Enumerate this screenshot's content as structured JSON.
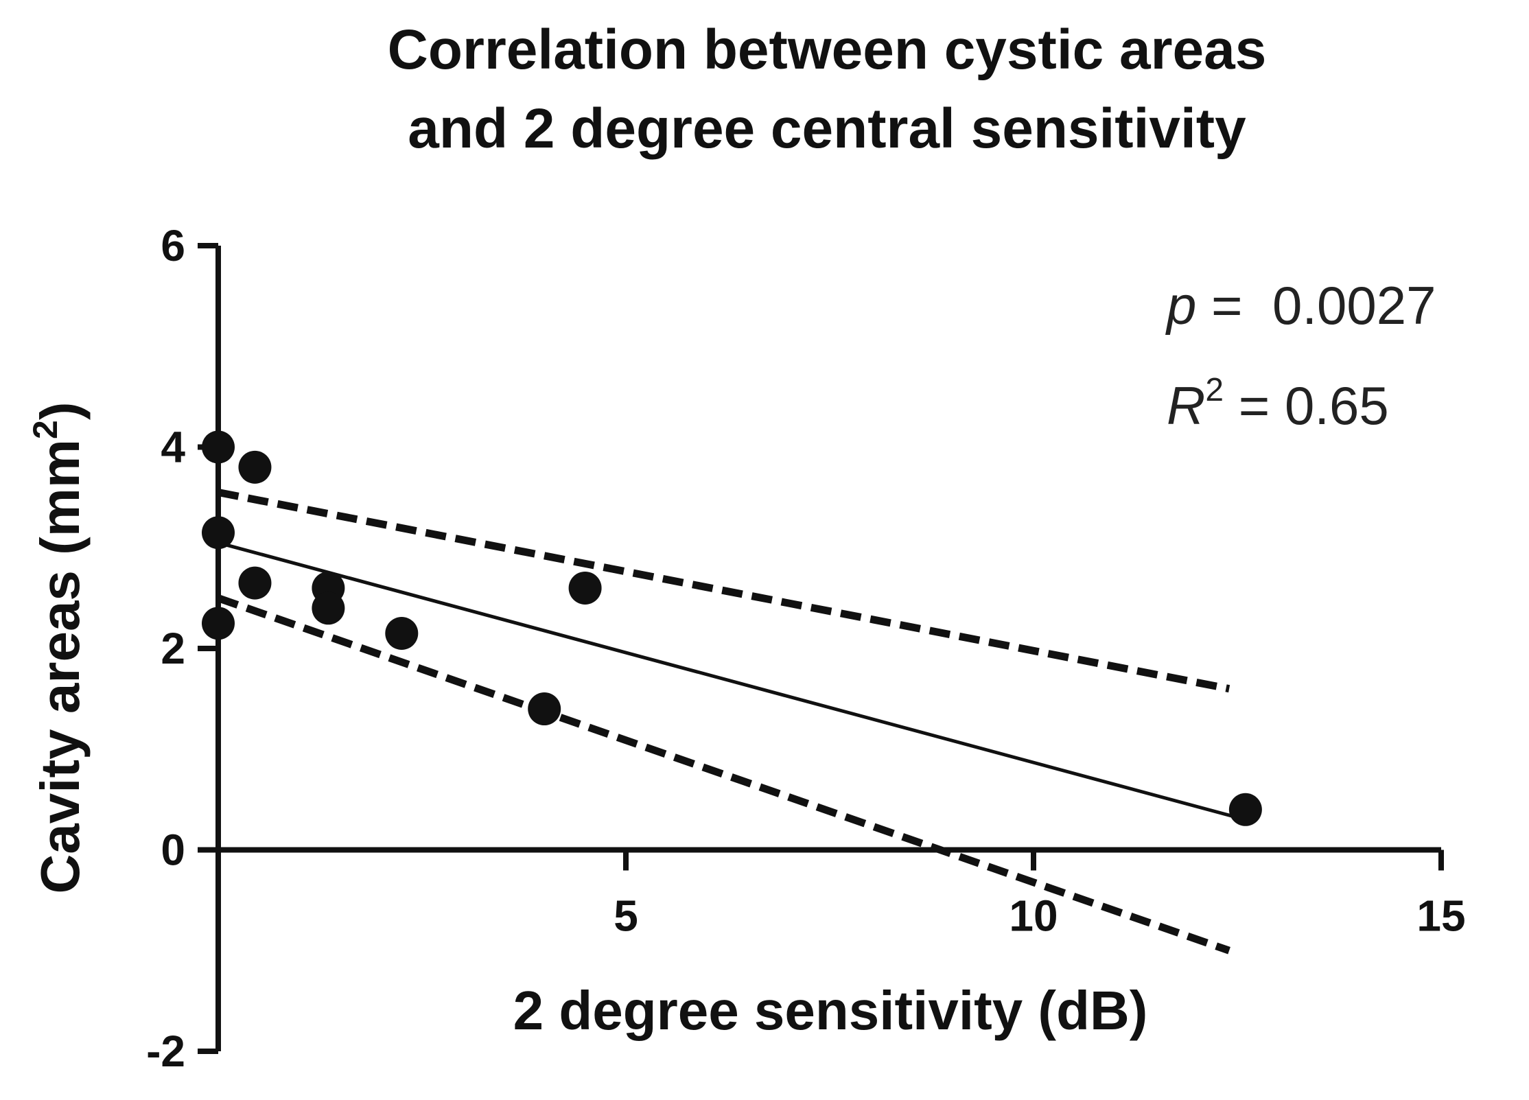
{
  "chart_data": {
    "type": "scatter",
    "title_lines": [
      "Correlation between cystic areas",
      "and 2 degree central sensitivity"
    ],
    "xlabel": "2 degree sensitivity (dB)",
    "ylabel_main": "Cavity areas (mm",
    "ylabel_sup": "2",
    "ylabel_close": ")",
    "xlim": [
      0,
      15
    ],
    "ylim": [
      -2,
      6
    ],
    "x_ticks": [
      5,
      10,
      15
    ],
    "y_ticks": [
      -2,
      0,
      2,
      4,
      6
    ],
    "grid": false,
    "points": [
      {
        "x": 0,
        "y": 4.0
      },
      {
        "x": 0.45,
        "y": 3.8
      },
      {
        "x": 0,
        "y": 3.15
      },
      {
        "x": 0,
        "y": 2.25
      },
      {
        "x": 0.45,
        "y": 2.65
      },
      {
        "x": 1.35,
        "y": 2.6
      },
      {
        "x": 1.35,
        "y": 2.4
      },
      {
        "x": 2.25,
        "y": 2.15
      },
      {
        "x": 4.5,
        "y": 2.6
      },
      {
        "x": 4.0,
        "y": 1.4
      },
      {
        "x": 12.6,
        "y": 0.4
      }
    ],
    "fit_line": {
      "x0": 0,
      "y0": 3.05,
      "x1": 12.6,
      "y1": 0.3
    },
    "ci_upper": {
      "x0": 0,
      "y0": 3.55,
      "x1": 12.4,
      "y1": 1.6
    },
    "ci_lower": {
      "x0": 0,
      "y0": 2.5,
      "x1": 12.4,
      "y1": -1.0
    },
    "annotation": {
      "p_label": "p",
      "p_value": " =  0.0027",
      "r_label": "R",
      "r_sup": "2",
      "r_value": " = 0.65"
    }
  }
}
